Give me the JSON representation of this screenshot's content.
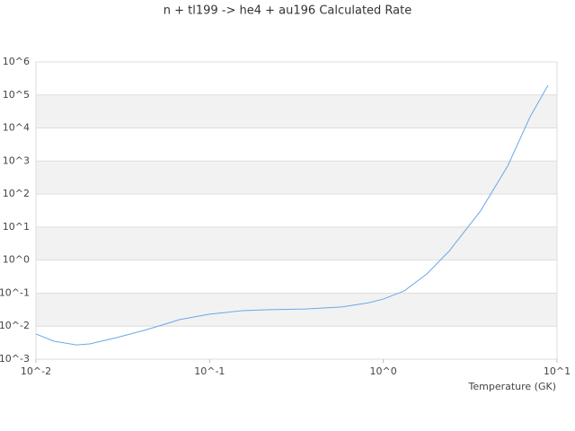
{
  "chart_data": {
    "type": "line",
    "title": "n + tl199 -> he4 + au196 Calculated Rate",
    "x_label": "Temperature (GK)",
    "x": [
      0.01,
      0.0127,
      0.0171,
      0.0204,
      0.0292,
      0.0418,
      0.053,
      0.0673,
      0.1,
      0.155,
      0.221,
      0.356,
      0.574,
      0.82,
      1,
      1.32,
      1.78,
      2.39,
      3.63,
      5.2,
      7.0,
      8.87
    ],
    "values": [
      0.0058,
      0.0035,
      0.0027,
      0.0029,
      0.0045,
      0.0074,
      0.0107,
      0.0158,
      0.023,
      0.0295,
      0.0316,
      0.0331,
      0.038,
      0.051,
      0.066,
      0.117,
      0.38,
      1.86,
      31,
      708,
      21900,
      195000
    ],
    "color": "#6aa8e8",
    "xscale": "log",
    "yscale": "log",
    "xlim": [
      0.01,
      10
    ],
    "xticks": [
      {
        "value": 0.01,
        "label": "10^-2"
      },
      {
        "value": 0.1,
        "label": "10^-1"
      },
      {
        "value": 1,
        "label": "10^0"
      },
      {
        "value": 10,
        "label": "10^1"
      }
    ],
    "ylim": [
      0.001,
      1000000
    ],
    "yticks": [
      {
        "value": 0.001,
        "label": "10^-3"
      },
      {
        "value": 0.01,
        "label": "10^-2"
      },
      {
        "value": 0.1,
        "label": "10^-1"
      },
      {
        "value": 1,
        "label": "10^0"
      },
      {
        "value": 10,
        "label": "10^1"
      },
      {
        "value": 100,
        "label": "10^2"
      },
      {
        "value": 1000,
        "label": "10^3"
      },
      {
        "value": 10000,
        "label": "10^4"
      },
      {
        "value": 100000,
        "label": "10^5"
      },
      {
        "value": 1000000,
        "label": "10^6"
      }
    ],
    "grid": true
  }
}
